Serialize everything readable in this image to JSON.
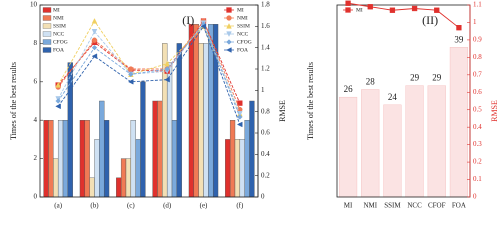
{
  "chart_data": [
    {
      "type": "bar",
      "title": "(I)",
      "ylabel": "Times of the best results",
      "y2label": "RMSE",
      "categories": [
        "(a)",
        "(b)",
        "(c)",
        "(d)",
        "(e)",
        "(f)"
      ],
      "series": [
        {
          "name": "MI",
          "color": "#e0312d",
          "values": [
            4,
            4,
            1,
            5,
            9,
            3
          ]
        },
        {
          "name": "NMI",
          "color": "#f07a55",
          "values": [
            4,
            4,
            2,
            5,
            9,
            4
          ]
        },
        {
          "name": "SSIM",
          "color": "#f3e0b5",
          "values": [
            2,
            1,
            2,
            8,
            8,
            3
          ]
        },
        {
          "name": "NCC",
          "color": "#cfe1f3",
          "values": [
            4,
            3,
            4,
            7,
            8,
            3
          ]
        },
        {
          "name": "CFOG",
          "color": "#7aa9dc",
          "values": [
            4,
            5,
            3,
            4,
            9,
            4
          ]
        },
        {
          "name": "FOA",
          "color": "#2f62ad",
          "values": [
            7,
            4,
            6,
            8,
            9,
            5
          ]
        }
      ],
      "lines": [
        {
          "name": "MI",
          "color": "#e0312d",
          "marker": "square",
          "axis": "y2",
          "values": [
            1.05,
            1.45,
            1.19,
            1.18,
            1.65,
            0.88
          ]
        },
        {
          "name": "NMI",
          "color": "#f07a55",
          "marker": "circle",
          "axis": "y2",
          "values": [
            1.03,
            1.47,
            1.2,
            1.2,
            1.65,
            0.82
          ]
        },
        {
          "name": "SSIM",
          "color": "#f0d060",
          "marker": "triangle",
          "axis": "y2",
          "values": [
            1.05,
            1.65,
            1.15,
            1.25,
            1.6,
            0.78
          ]
        },
        {
          "name": "NCC",
          "color": "#a9c9ea",
          "marker": "triangle-down",
          "axis": "y2",
          "values": [
            0.92,
            1.55,
            1.15,
            1.18,
            1.63,
            0.78
          ]
        },
        {
          "name": "CFOG",
          "color": "#7aa9dc",
          "marker": "diamond",
          "axis": "y2",
          "values": [
            0.9,
            1.4,
            1.15,
            1.2,
            1.62,
            0.75
          ]
        },
        {
          "name": "FOA",
          "color": "#2f62ad",
          "marker": "triangle-left",
          "axis": "y2",
          "values": [
            0.85,
            1.32,
            1.08,
            1.1,
            1.6,
            0.68
          ]
        }
      ],
      "ylim": [
        0,
        10
      ],
      "yticks": [
        0,
        2,
        4,
        6,
        8,
        10
      ],
      "y2lim": [
        0,
        1.8
      ],
      "y2ticks": [
        0,
        0.2,
        0.4,
        0.6,
        0.8,
        1,
        1.2,
        1.4,
        1.6,
        1.8
      ],
      "legend": "upper left",
      "line_legend": "upper right",
      "y2color": "#222222"
    },
    {
      "type": "bar",
      "title": "(II)",
      "ylabel": "Times of the best results",
      "y2label": "RMSE",
      "categories": [
        "MI",
        "NMI",
        "SSIM",
        "NCC",
        "CFOF",
        "FOA"
      ],
      "values": [
        26,
        28,
        24,
        29,
        29,
        39
      ],
      "color": "#fbe3e3",
      "data_labels": true,
      "lines": [
        {
          "name": "MI",
          "color": "#e0312d",
          "marker": "square",
          "axis": "y2",
          "values": [
            1.11,
            1.09,
            1.07,
            1.08,
            1.07,
            0.97
          ]
        }
      ],
      "ylim": [
        0,
        50
      ],
      "y2lim": [
        0,
        1.1
      ],
      "y2ticks": [
        0,
        0.1,
        0.2,
        0.3,
        0.4,
        0.5,
        0.6,
        0.7,
        0.8,
        0.9,
        1,
        1.1
      ],
      "line_legend": "upper left",
      "y2color": "#e0312d"
    }
  ]
}
